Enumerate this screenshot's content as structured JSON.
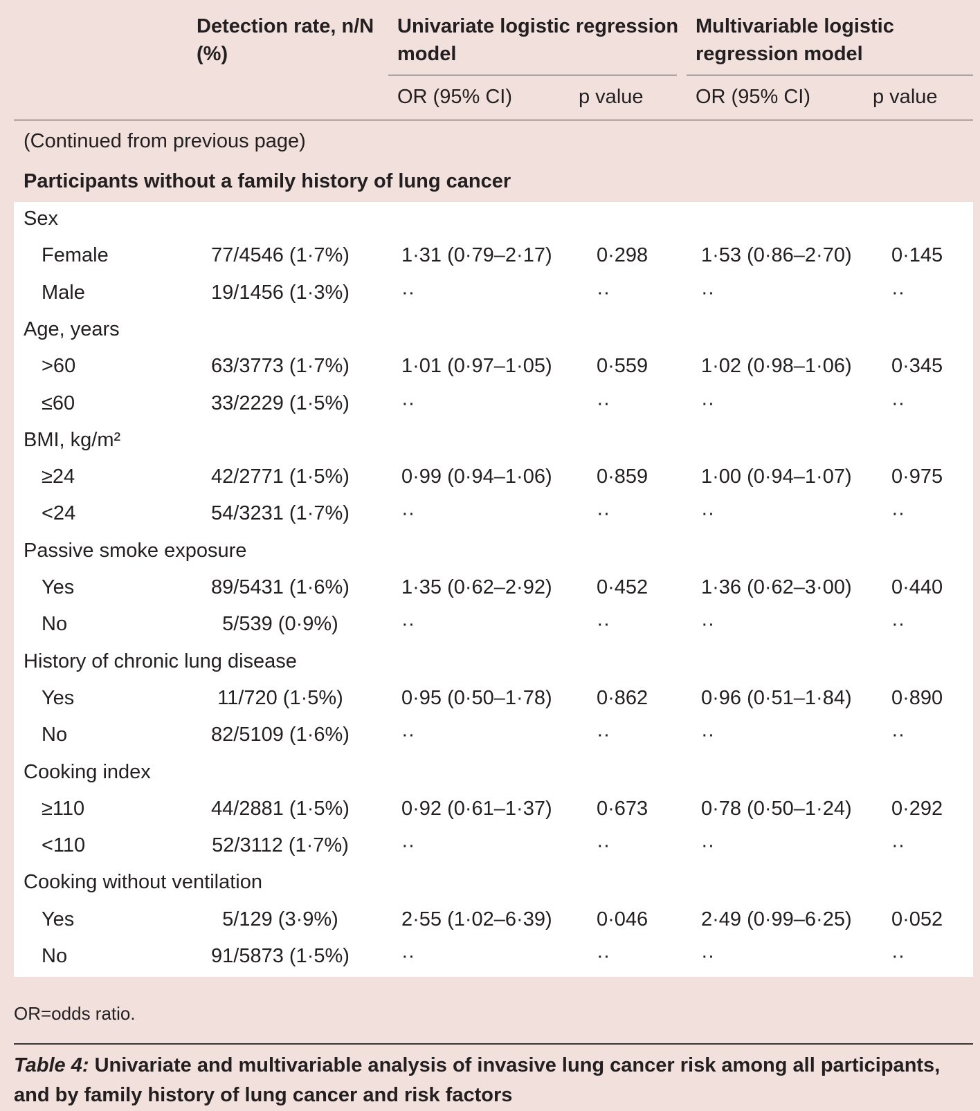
{
  "header": {
    "detection": "Detection rate, n/N (%)",
    "detection_line1": "Detection rate, n/N",
    "detection_line2": "(%)",
    "univariate_line1": "Univariate logistic regression",
    "univariate_line2": "model",
    "multivariable_line1": "Multivariable logistic",
    "multivariable_line2": "regression model",
    "or_ci": "OR (95% CI)",
    "p_value": "p value"
  },
  "continued": "(Continued from previous page)",
  "section_title": "Participants without a family history of lung cancer",
  "rows": [
    {
      "category": "Sex"
    },
    {
      "level": "Female",
      "detection": "77/4546 (1·7%)",
      "uni_or": "1·31 (0·79–2·17)",
      "uni_p": "0·298",
      "multi_or": "1·53 (0·86–2·70)",
      "multi_p": "0·145"
    },
    {
      "level": "Male",
      "detection": "19/1456 (1·3%)",
      "uni_or": "··",
      "uni_p": "··",
      "multi_or": "··",
      "multi_p": "··"
    },
    {
      "category": "Age, years"
    },
    {
      "level": ">60",
      "detection": "63/3773 (1·7%)",
      "uni_or": "1·01 (0·97–1·05)",
      "uni_p": "0·559",
      "multi_or": "1·02 (0·98–1·06)",
      "multi_p": "0·345"
    },
    {
      "level": "≤60",
      "detection": "33/2229 (1·5%)",
      "uni_or": "··",
      "uni_p": "··",
      "multi_or": "··",
      "multi_p": "··"
    },
    {
      "category": "BMI, kg/m²"
    },
    {
      "level": "≥24",
      "detection": "42/2771 (1·5%)",
      "uni_or": "0·99 (0·94–1·06)",
      "uni_p": "0·859",
      "multi_or": "1·00 (0·94–1·07)",
      "multi_p": "0·975"
    },
    {
      "level": "<24",
      "detection": "54/3231 (1·7%)",
      "uni_or": "··",
      "uni_p": "··",
      "multi_or": "··",
      "multi_p": "··"
    },
    {
      "category": "Passive smoke exposure"
    },
    {
      "level": "Yes",
      "detection": "89/5431 (1·6%)",
      "uni_or": "1·35 (0·62–2·92)",
      "uni_p": "0·452",
      "multi_or": "1·36 (0·62–3·00)",
      "multi_p": "0·440"
    },
    {
      "level": "No",
      "detection": "5/539 (0·9%)",
      "uni_or": "··",
      "uni_p": "··",
      "multi_or": "··",
      "multi_p": "··"
    },
    {
      "category": "History of chronic lung disease"
    },
    {
      "level": "Yes",
      "detection": "11/720 (1·5%)",
      "uni_or": "0·95 (0·50–1·78)",
      "uni_p": "0·862",
      "multi_or": "0·96 (0·51–1·84)",
      "multi_p": "0·890"
    },
    {
      "level": "No",
      "detection": "82/5109 (1·6%)",
      "uni_or": "··",
      "uni_p": "··",
      "multi_or": "··",
      "multi_p": "··"
    },
    {
      "category": "Cooking index"
    },
    {
      "level": "≥110",
      "detection": "44/2881 (1·5%)",
      "uni_or": "0·92 (0·61–1·37)",
      "uni_p": "0·673",
      "multi_or": "0·78 (0·50–1·24)",
      "multi_p": "0·292"
    },
    {
      "level": "<110",
      "detection": "52/3112 (1·7%)",
      "uni_or": "··",
      "uni_p": "··",
      "multi_or": "··",
      "multi_p": "··"
    },
    {
      "category": "Cooking without ventilation"
    },
    {
      "level": "Yes",
      "detection": "5/129 (3·9%)",
      "uni_or": "2·55 (1·02–6·39)",
      "uni_p": "0·046",
      "multi_or": "2·49 (0·99–6·25)",
      "multi_p": "0·052"
    },
    {
      "level": "No",
      "detection": "91/5873 (1·5%)",
      "uni_or": "··",
      "uni_p": "··",
      "multi_or": "··",
      "multi_p": "··"
    }
  ],
  "footnote": "OR=odds ratio.",
  "caption": {
    "label": "Table 4:",
    "text": "Univariate and multivariable analysis of invasive lung cancer risk among all participants, and by family history of lung cancer and risk factors"
  }
}
